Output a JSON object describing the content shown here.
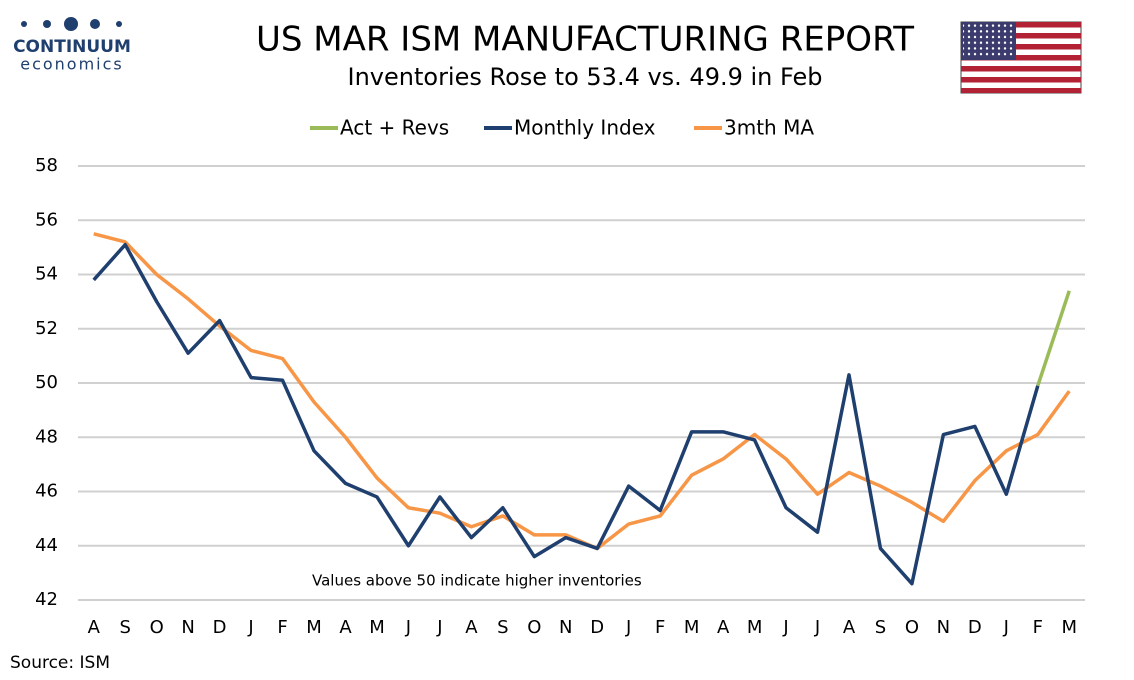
{
  "logo": {
    "name": "CONTINUUM",
    "tagline": "economics"
  },
  "chart_data": {
    "type": "line",
    "title": "US MAR ISM MANUFACTURING REPORT",
    "subtitle": "Inventories Rose to 53.4 vs. 49.9 in Feb",
    "annotation": "Values above 50 indicate higher inventories",
    "source": "Source: ISM",
    "categories": [
      "A",
      "S",
      "O",
      "N",
      "D",
      "J",
      "F",
      "M",
      "A",
      "M",
      "J",
      "J",
      "A",
      "S",
      "O",
      "N",
      "D",
      "J",
      "F",
      "M",
      "A",
      "M",
      "J",
      "J",
      "A",
      "S",
      "O",
      "N",
      "D",
      "J",
      "F",
      "M"
    ],
    "series": [
      {
        "name": "Act + Revs",
        "color": "#9bbb59",
        "values": [
          null,
          null,
          null,
          null,
          null,
          null,
          null,
          null,
          null,
          null,
          null,
          null,
          null,
          null,
          null,
          null,
          null,
          null,
          null,
          null,
          null,
          null,
          null,
          null,
          null,
          null,
          null,
          null,
          null,
          null,
          49.9,
          53.4
        ]
      },
      {
        "name": "Monthly Index",
        "color": "#1f3f6e",
        "values": [
          53.8,
          55.1,
          53.0,
          51.1,
          52.3,
          50.2,
          50.1,
          47.5,
          46.3,
          45.8,
          44.0,
          45.8,
          44.3,
          45.4,
          43.6,
          44.3,
          43.9,
          46.2,
          45.3,
          48.2,
          48.2,
          47.9,
          45.4,
          44.5,
          50.3,
          43.9,
          42.6,
          48.1,
          48.4,
          45.9,
          49.9,
          null
        ]
      },
      {
        "name": "3mth MA",
        "color": "#f79646",
        "values": [
          55.5,
          55.2,
          54.0,
          53.1,
          52.1,
          51.2,
          50.9,
          49.3,
          48.0,
          46.5,
          45.4,
          45.2,
          44.7,
          45.1,
          44.4,
          44.4,
          43.9,
          44.8,
          45.1,
          46.6,
          47.2,
          48.1,
          47.2,
          45.9,
          46.7,
          46.2,
          45.6,
          44.9,
          46.4,
          47.5,
          48.1,
          49.7
        ]
      }
    ],
    "ylim": [
      42,
      58
    ],
    "yticks": [
      42,
      44,
      46,
      48,
      50,
      52,
      54,
      56,
      58
    ],
    "grid": true,
    "legend": "top"
  }
}
